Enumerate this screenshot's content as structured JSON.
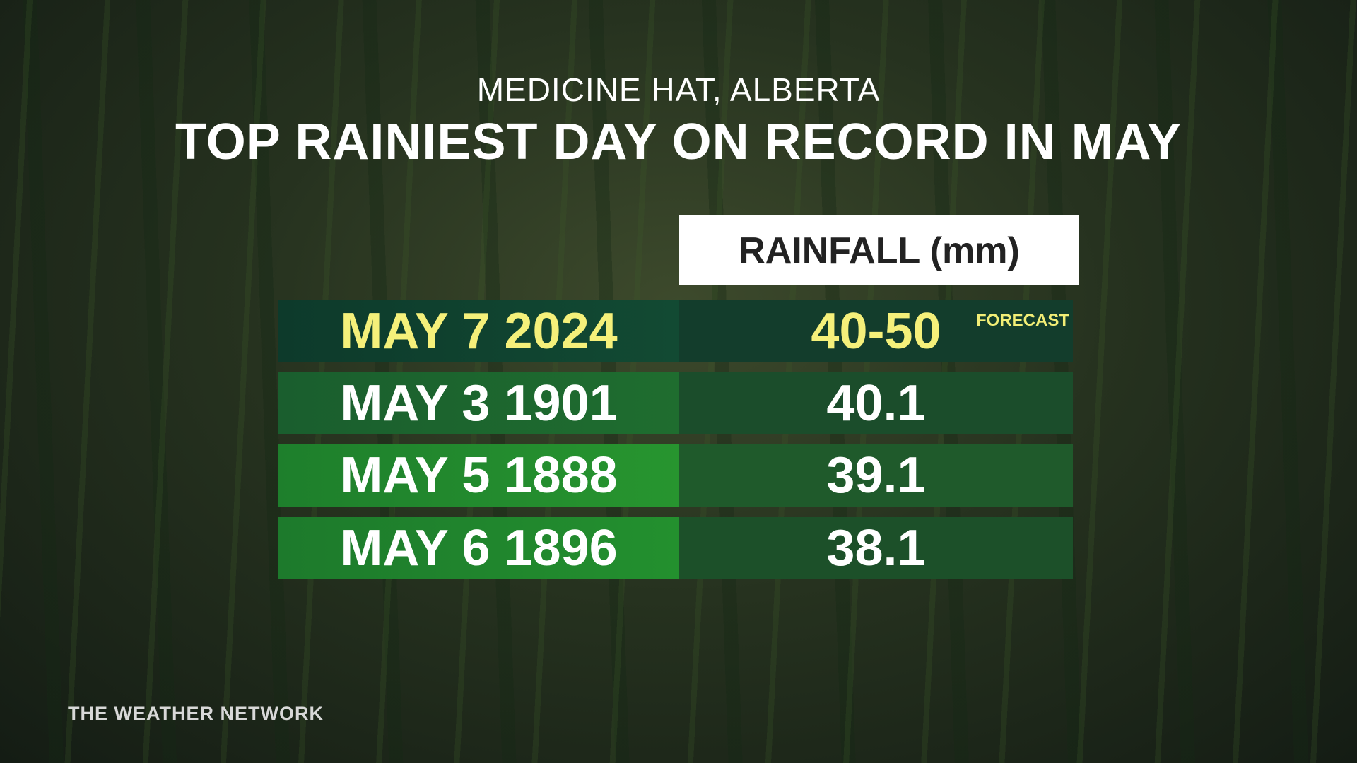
{
  "header": {
    "subtitle": "MEDICINE HAT, ALBERTA",
    "title": "TOP RAINIEST DAY ON RECORD IN MAY"
  },
  "table": {
    "columns": [
      "RAINFALL (mm)"
    ],
    "rows": [
      [
        "MAY 7 2024",
        "40-50",
        "FORECAST"
      ],
      [
        "MAY 3 1901",
        "40.1"
      ],
      [
        "MAY 5 1888",
        "39.1"
      ],
      [
        "MAY 6 1896",
        "38.1"
      ]
    ]
  },
  "footer": {
    "brand": "THE WEATHER NETWORK"
  }
}
